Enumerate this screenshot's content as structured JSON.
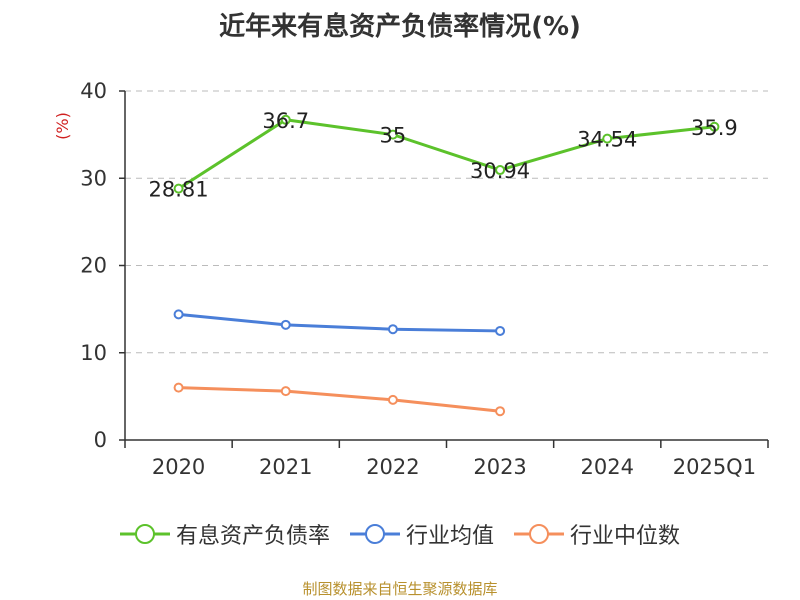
{
  "chart_data": {
    "type": "line",
    "title": "近年来有息资产负债率情况(%)",
    "ylabel": "(%)",
    "xlabel": "",
    "categories": [
      "2020",
      "2021",
      "2022",
      "2023",
      "2024",
      "2025Q1"
    ],
    "ylim": [
      0,
      40
    ],
    "yticks": [
      0,
      10,
      20,
      30,
      40
    ],
    "grid": true,
    "legend": "bottom",
    "series": [
      {
        "name": "有息资产负债率",
        "color": "#5cc22b",
        "values": [
          28.81,
          36.7,
          35,
          30.94,
          34.54,
          35.9
        ],
        "labels": [
          "28.81",
          "36.7",
          "35",
          "30.94",
          "34.54",
          "35.9"
        ]
      },
      {
        "name": "行业均值",
        "color": "#4a7ed8",
        "values": [
          14.4,
          13.2,
          12.7,
          12.5,
          null,
          null
        ]
      },
      {
        "name": "行业中位数",
        "color": "#f58f5c",
        "values": [
          6.0,
          5.6,
          4.6,
          3.3,
          null,
          null
        ]
      }
    ]
  },
  "footer": {
    "source": "制图数据来自恒生聚源数据库"
  }
}
